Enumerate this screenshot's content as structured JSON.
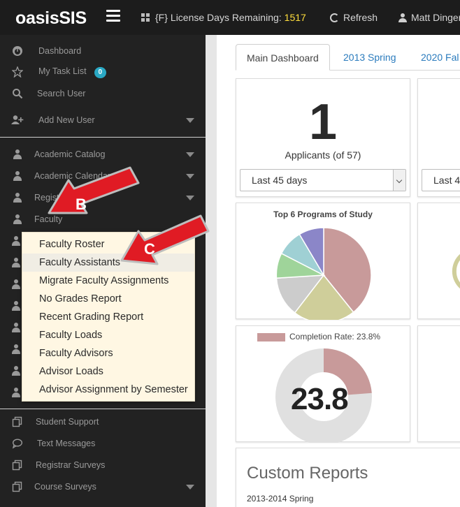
{
  "topbar": {
    "brand": "oasisSIS",
    "license_prefix": "{F}",
    "license_label": "License Days Remaining:",
    "license_days": "1517",
    "refresh_label": "Refresh",
    "user_name": "Matt Dinger"
  },
  "sidebar": {
    "top_items": [
      {
        "label": "Dashboard",
        "icon": "dashboard-icon"
      },
      {
        "label": "My Task List",
        "icon": "star-icon",
        "badge": "0"
      },
      {
        "label": "Search User",
        "icon": "search-icon"
      },
      {
        "label": "Add New User",
        "icon": "add-user-icon"
      }
    ],
    "sections": [
      {
        "label": "Academic Catalog"
      },
      {
        "label": "Academic Calendar"
      },
      {
        "label": "Registrar"
      },
      {
        "label": "Faculty"
      }
    ],
    "bottom_items": [
      {
        "label": "Student Support",
        "icon": "copy-icon"
      },
      {
        "label": "Text Messages",
        "icon": "chat-icon"
      },
      {
        "label": "Registrar Surveys",
        "icon": "copy-icon"
      },
      {
        "label": "Course Surveys",
        "icon": "copy-icon"
      }
    ]
  },
  "faculty_menu": {
    "items": [
      "Faculty Roster",
      "Faculty Assistants",
      "Migrate Faculty Assignments",
      "No Grades Report",
      "Recent Grading Report",
      "Faculty Loads",
      "Faculty Advisors",
      "Advisor Loads",
      "Advisor Assignment by Semester"
    ],
    "highlighted": "Faculty Assistants"
  },
  "main": {
    "tabs": [
      "Main Dashboard",
      "2013 Spring",
      "2020 Fal"
    ],
    "applicants": {
      "count": "1",
      "label": "Applicants (of 57)",
      "range": "Last 45 days",
      "range2": "Last 4"
    },
    "programs_chart": {
      "title": "Top 6 Programs of Study"
    },
    "completion": {
      "legend": "Completion Rate: 23.8%",
      "value": "23.8",
      "percent": 23.8
    },
    "reports": {
      "title": "Custom Reports",
      "first": "2013-2014 Spring"
    }
  },
  "annotations": {
    "b": "B",
    "c": "C"
  },
  "colors": {
    "sidebar_bg": "#222222",
    "topbar_bg": "#1c1c1c",
    "badge": "#2aa8c4",
    "license_value": "#ffde3c",
    "menu_bg": "#fff7e3",
    "pie_rose": "#c89a9a",
    "pie_olive": "#cfce9a",
    "pie_gray": "#cccccc",
    "pie_green": "#9fd49a",
    "pie_teal": "#9fd0d4",
    "pie_purple": "#8b86c8",
    "arrow_red": "#e01b24"
  }
}
